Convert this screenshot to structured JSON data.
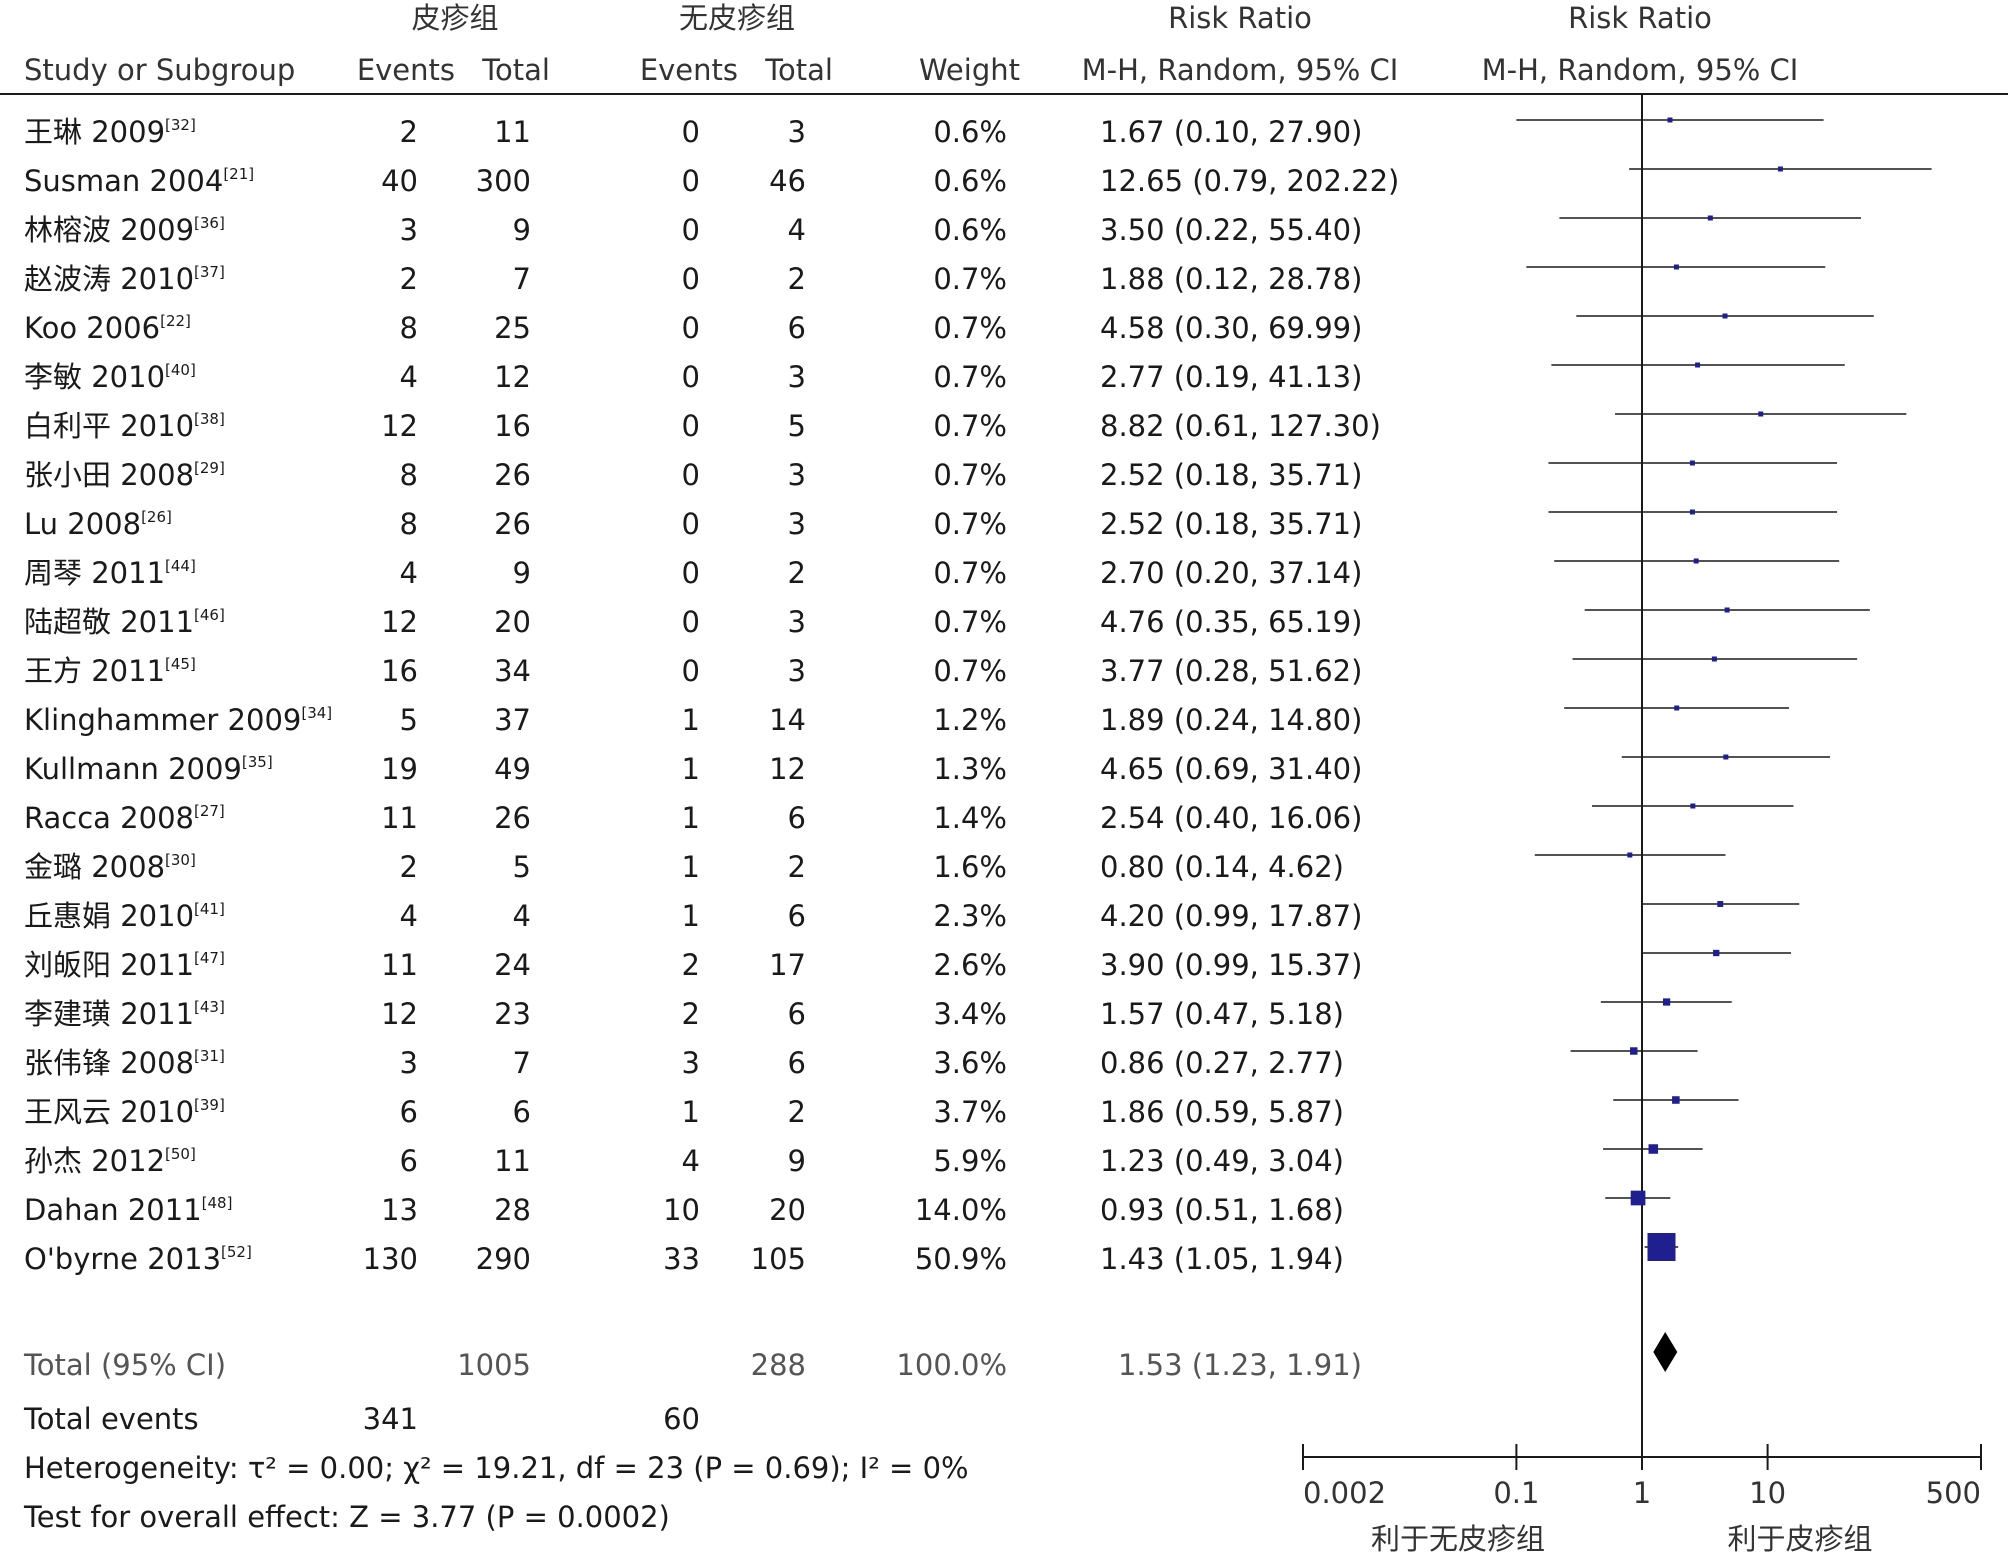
{
  "headers": {
    "group1": "皮疹组",
    "group2": "无皮疹组",
    "rr_top": "Risk Ratio",
    "rr_plot_top": "Risk Ratio",
    "study": "Study or Subgroup",
    "events1": "Events",
    "total1": "Total",
    "events2": "Events",
    "total2": "Total",
    "weight": "Weight",
    "rr_sub": "M-H, Random, 95% CI",
    "rr_plot_sub": "M-H, Random, 95% CI"
  },
  "chart_data": {
    "type": "forest",
    "x_scale": "log",
    "xlim": [
      0.002,
      500
    ],
    "ticks": [
      "0.002",
      "0.1",
      "1",
      "10",
      "500"
    ],
    "favours_left": "利于无皮疹组",
    "favours_right": "利于皮疹组",
    "studies": [
      {
        "name": "王琳 2009",
        "ref": "[32]",
        "e1": "2",
        "t1": "11",
        "e2": "0",
        "t2": "3",
        "weight": "0.6%",
        "ci": "1.67 (0.10, 27.90)",
        "rr": 1.67,
        "lo": 0.1,
        "hi": 27.9
      },
      {
        "name": "Susman 2004",
        "ref": "[21]",
        "e1": "40",
        "t1": "300",
        "e2": "0",
        "t2": "46",
        "weight": "0.6%",
        "ci": "12.65 (0.79, 202.22)",
        "rr": 12.65,
        "lo": 0.79,
        "hi": 202.22
      },
      {
        "name": "林榕波 2009",
        "ref": "[36]",
        "e1": "3",
        "t1": "9",
        "e2": "0",
        "t2": "4",
        "weight": "0.6%",
        "ci": "3.50 (0.22, 55.40)",
        "rr": 3.5,
        "lo": 0.22,
        "hi": 55.4
      },
      {
        "name": "赵波涛 2010",
        "ref": "[37]",
        "e1": "2",
        "t1": "7",
        "e2": "0",
        "t2": "2",
        "weight": "0.7%",
        "ci": "1.88 (0.12, 28.78)",
        "rr": 1.88,
        "lo": 0.12,
        "hi": 28.78
      },
      {
        "name": "Koo 2006",
        "ref": "[22]",
        "e1": "8",
        "t1": "25",
        "e2": "0",
        "t2": "6",
        "weight": "0.7%",
        "ci": "4.58 (0.30, 69.99)",
        "rr": 4.58,
        "lo": 0.3,
        "hi": 69.99
      },
      {
        "name": "李敏 2010",
        "ref": "[40]",
        "e1": "4",
        "t1": "12",
        "e2": "0",
        "t2": "3",
        "weight": "0.7%",
        "ci": "2.77 (0.19, 41.13)",
        "rr": 2.77,
        "lo": 0.19,
        "hi": 41.13
      },
      {
        "name": "白利平 2010",
        "ref": "[38]",
        "e1": "12",
        "t1": "16",
        "e2": "0",
        "t2": "5",
        "weight": "0.7%",
        "ci": "8.82 (0.61, 127.30)",
        "rr": 8.82,
        "lo": 0.61,
        "hi": 127.3
      },
      {
        "name": "张小田 2008",
        "ref": "[29]",
        "e1": "8",
        "t1": "26",
        "e2": "0",
        "t2": "3",
        "weight": "0.7%",
        "ci": "2.52 (0.18, 35.71)",
        "rr": 2.52,
        "lo": 0.18,
        "hi": 35.71
      },
      {
        "name": "Lu 2008",
        "ref": "[26]",
        "e1": "8",
        "t1": "26",
        "e2": "0",
        "t2": "3",
        "weight": "0.7%",
        "ci": "2.52 (0.18, 35.71)",
        "rr": 2.52,
        "lo": 0.18,
        "hi": 35.71
      },
      {
        "name": "周琴 2011",
        "ref": "[44]",
        "e1": "4",
        "t1": "9",
        "e2": "0",
        "t2": "2",
        "weight": "0.7%",
        "ci": "2.70 (0.20, 37.14)",
        "rr": 2.7,
        "lo": 0.2,
        "hi": 37.14
      },
      {
        "name": "陆超敬 2011",
        "ref": "[46]",
        "e1": "12",
        "t1": "20",
        "e2": "0",
        "t2": "3",
        "weight": "0.7%",
        "ci": "4.76 (0.35, 65.19)",
        "rr": 4.76,
        "lo": 0.35,
        "hi": 65.19
      },
      {
        "name": "王方 2011",
        "ref": "[45]",
        "e1": "16",
        "t1": "34",
        "e2": "0",
        "t2": "3",
        "weight": "0.7%",
        "ci": "3.77 (0.28, 51.62)",
        "rr": 3.77,
        "lo": 0.28,
        "hi": 51.62
      },
      {
        "name": "Klinghammer 2009",
        "ref": "[34]",
        "e1": "5",
        "t1": "37",
        "e2": "1",
        "t2": "14",
        "weight": "1.2%",
        "ci": "1.89 (0.24, 14.80)",
        "rr": 1.89,
        "lo": 0.24,
        "hi": 14.8
      },
      {
        "name": "Kullmann 2009",
        "ref": "[35]",
        "e1": "19",
        "t1": "49",
        "e2": "1",
        "t2": "12",
        "weight": "1.3%",
        "ci": "4.65 (0.69, 31.40)",
        "rr": 4.65,
        "lo": 0.69,
        "hi": 31.4
      },
      {
        "name": "Racca 2008",
        "ref": "[27]",
        "e1": "11",
        "t1": "26",
        "e2": "1",
        "t2": "6",
        "weight": "1.4%",
        "ci": "2.54 (0.40, 16.06)",
        "rr": 2.54,
        "lo": 0.4,
        "hi": 16.06
      },
      {
        "name": "金璐 2008",
        "ref": "[30]",
        "e1": "2",
        "t1": "5",
        "e2": "1",
        "t2": "2",
        "weight": "1.6%",
        "ci": "0.80 (0.14, 4.62)",
        "rr": 0.8,
        "lo": 0.14,
        "hi": 4.62
      },
      {
        "name": "丘惠娟 2010",
        "ref": "[41]",
        "e1": "4",
        "t1": "4",
        "e2": "1",
        "t2": "6",
        "weight": "2.3%",
        "ci": "4.20 (0.99, 17.87)",
        "rr": 4.2,
        "lo": 0.99,
        "hi": 17.87
      },
      {
        "name": "刘皈阳 2011",
        "ref": "[47]",
        "e1": "11",
        "t1": "24",
        "e2": "2",
        "t2": "17",
        "weight": "2.6%",
        "ci": "3.90 (0.99, 15.37)",
        "rr": 3.9,
        "lo": 0.99,
        "hi": 15.37
      },
      {
        "name": "李建璜 2011",
        "ref": "[43]",
        "e1": "12",
        "t1": "23",
        "e2": "2",
        "t2": "6",
        "weight": "3.4%",
        "ci": "1.57 (0.47, 5.18)",
        "rr": 1.57,
        "lo": 0.47,
        "hi": 5.18
      },
      {
        "name": "张伟锋 2008",
        "ref": "[31]",
        "e1": "3",
        "t1": "7",
        "e2": "3",
        "t2": "6",
        "weight": "3.6%",
        "ci": "0.86 (0.27, 2.77)",
        "rr": 0.86,
        "lo": 0.27,
        "hi": 2.77
      },
      {
        "name": "王风云 2010",
        "ref": "[39]",
        "e1": "6",
        "t1": "6",
        "e2": "1",
        "t2": "2",
        "weight": "3.7%",
        "ci": "1.86 (0.59, 5.87)",
        "rr": 1.86,
        "lo": 0.59,
        "hi": 5.87
      },
      {
        "name": "孙杰 2012",
        "ref": "[50]",
        "e1": "6",
        "t1": "11",
        "e2": "4",
        "t2": "9",
        "weight": "5.9%",
        "ci": "1.23 (0.49, 3.04)",
        "rr": 1.23,
        "lo": 0.49,
        "hi": 3.04
      },
      {
        "name": "Dahan 2011",
        "ref": "[48]",
        "e1": "13",
        "t1": "28",
        "e2": "10",
        "t2": "20",
        "weight": "14.0%",
        "ci": "0.93 (0.51, 1.68)",
        "rr": 0.93,
        "lo": 0.51,
        "hi": 1.68
      },
      {
        "name": "O'byrne 2013",
        "ref": "[52]",
        "e1": "130",
        "t1": "290",
        "e2": "33",
        "t2": "105",
        "weight": "50.9%",
        "ci": "1.43 (1.05, 1.94)",
        "rr": 1.43,
        "lo": 1.05,
        "hi": 1.94
      }
    ],
    "total": {
      "label": "Total (95% CI)",
      "t1": "1005",
      "t2": "288",
      "weight": "100.0%",
      "ci": "1.53 (1.23, 1.91)",
      "rr": 1.53,
      "lo": 1.23,
      "hi": 1.91
    },
    "total_events": {
      "label": "Total events",
      "e1": "341",
      "e2": "60"
    },
    "heterogeneity": "Heterogeneity: τ² = 0.00; χ² = 19.21, df = 23 (P = 0.69); I² = 0%",
    "overall_effect": "Test for overall effect: Z = 3.77 (P = 0.0002)",
    "colors": {
      "marker": "#1f1f8f",
      "diamond": "#000000",
      "line": "#1a1a1a"
    }
  }
}
